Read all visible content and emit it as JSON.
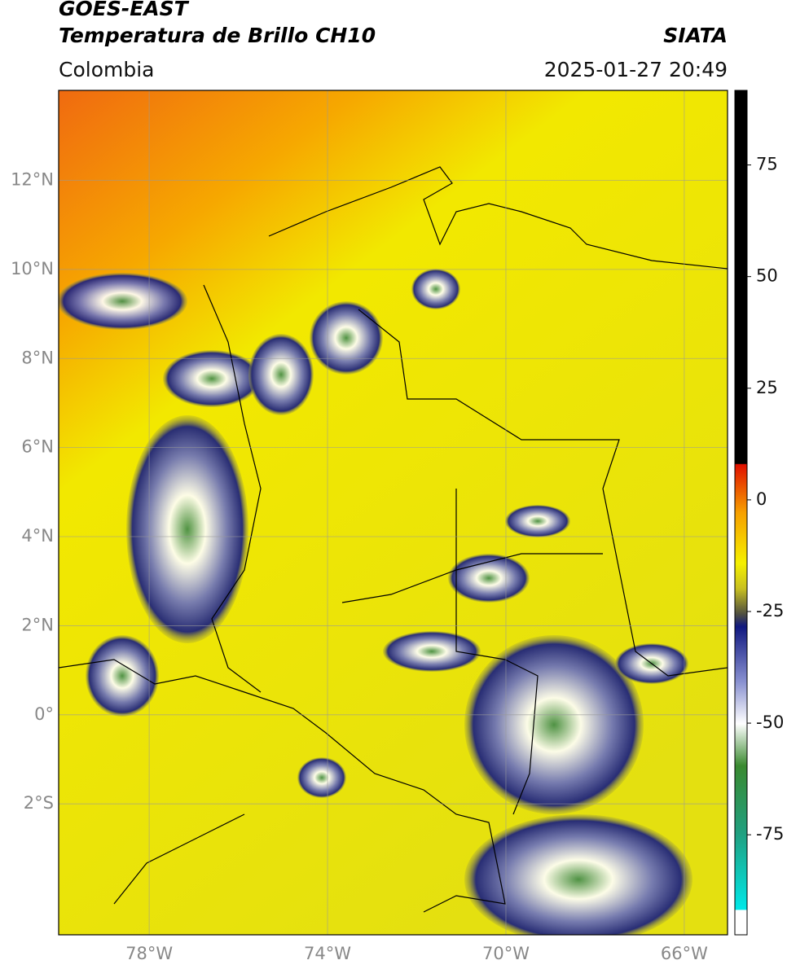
{
  "header": {
    "title": "GOES-EAST",
    "subtitle": "Temperatura de Brillo CH10",
    "source": "SIATA",
    "region": "Colombia",
    "datetime": "2025-01-27 20:49"
  },
  "map": {
    "lat_range": [
      -4.94,
      14.02
    ],
    "lon_range": [
      -80.03,
      -65.03
    ],
    "lat_ticks": [
      {
        "value": 12,
        "label": "12°N"
      },
      {
        "value": 10,
        "label": "10°N"
      },
      {
        "value": 8,
        "label": "8°N"
      },
      {
        "value": 6,
        "label": "6°N"
      },
      {
        "value": 4,
        "label": "4°N"
      },
      {
        "value": 2,
        "label": "2°N"
      },
      {
        "value": 0,
        "label": "0°"
      },
      {
        "value": -2,
        "label": "2°S"
      }
    ],
    "lon_ticks": [
      {
        "value": -78,
        "label": "78°W"
      },
      {
        "value": -74,
        "label": "74°W"
      },
      {
        "value": -70,
        "label": "70°W"
      },
      {
        "value": -66,
        "label": "66°W"
      }
    ]
  },
  "colorbar": {
    "range": [
      -97.4,
      91.7
    ],
    "ticks": [
      75,
      50,
      25,
      0,
      -25,
      -50,
      -75
    ]
  }
}
